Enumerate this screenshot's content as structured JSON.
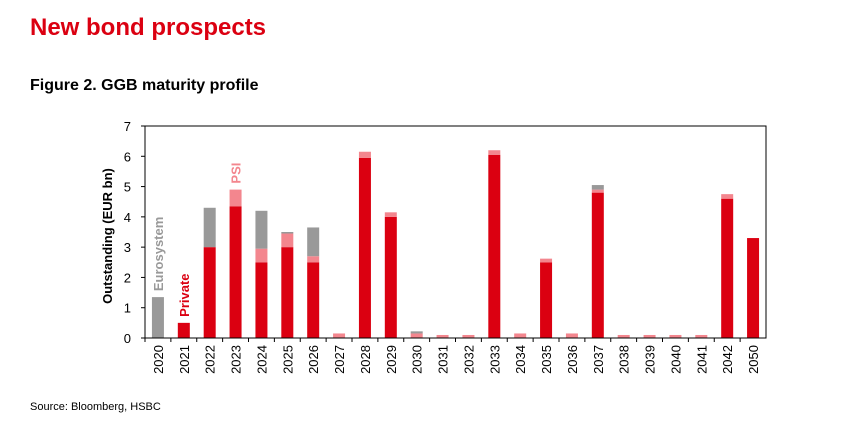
{
  "page": {
    "headline": "New bond prospects",
    "figure_title": "Figure 2. GGB maturity profile",
    "source": "Source: Bloomberg, HSBC"
  },
  "chart_data": {
    "type": "bar",
    "stacked": true,
    "ylabel": "Outstanding (EUR bn)",
    "ylim": [
      0,
      7
    ],
    "yticks": [
      0,
      1,
      2,
      3,
      4,
      5,
      6,
      7
    ],
    "grid": false,
    "legend": "inline labels",
    "categories": [
      "2020",
      "2021",
      "2022",
      "2023",
      "2024",
      "2025",
      "2026",
      "2027",
      "2028",
      "2029",
      "2030",
      "2031",
      "2032",
      "2033",
      "2034",
      "2035",
      "2036",
      "2037",
      "2038",
      "2039",
      "2040",
      "2041",
      "2042",
      "2050"
    ],
    "series": [
      {
        "name": "Private",
        "color": "#db0011",
        "values": [
          0,
          0.5,
          3.0,
          4.35,
          2.5,
          3.0,
          2.5,
          0,
          5.95,
          4.0,
          0,
          0,
          0,
          6.05,
          0,
          2.5,
          0,
          4.8,
          0,
          0,
          0,
          0,
          4.6,
          3.3
        ]
      },
      {
        "name": "PSI",
        "color": "#f3868e",
        "values": [
          0,
          0,
          0,
          0.55,
          0.45,
          0.45,
          0.2,
          0.15,
          0.2,
          0.15,
          0.15,
          0.1,
          0.1,
          0.15,
          0.15,
          0.12,
          0.15,
          0.1,
          0.1,
          0.1,
          0.1,
          0.1,
          0.15,
          0
        ]
      },
      {
        "name": "Eurosystem",
        "color": "#999999",
        "values": [
          1.35,
          0,
          1.3,
          0,
          1.25,
          0.05,
          0.95,
          0,
          0,
          0,
          0.07,
          0,
          0,
          0,
          0,
          0,
          0,
          0.15,
          0,
          0,
          0,
          0,
          0,
          0
        ]
      }
    ]
  }
}
